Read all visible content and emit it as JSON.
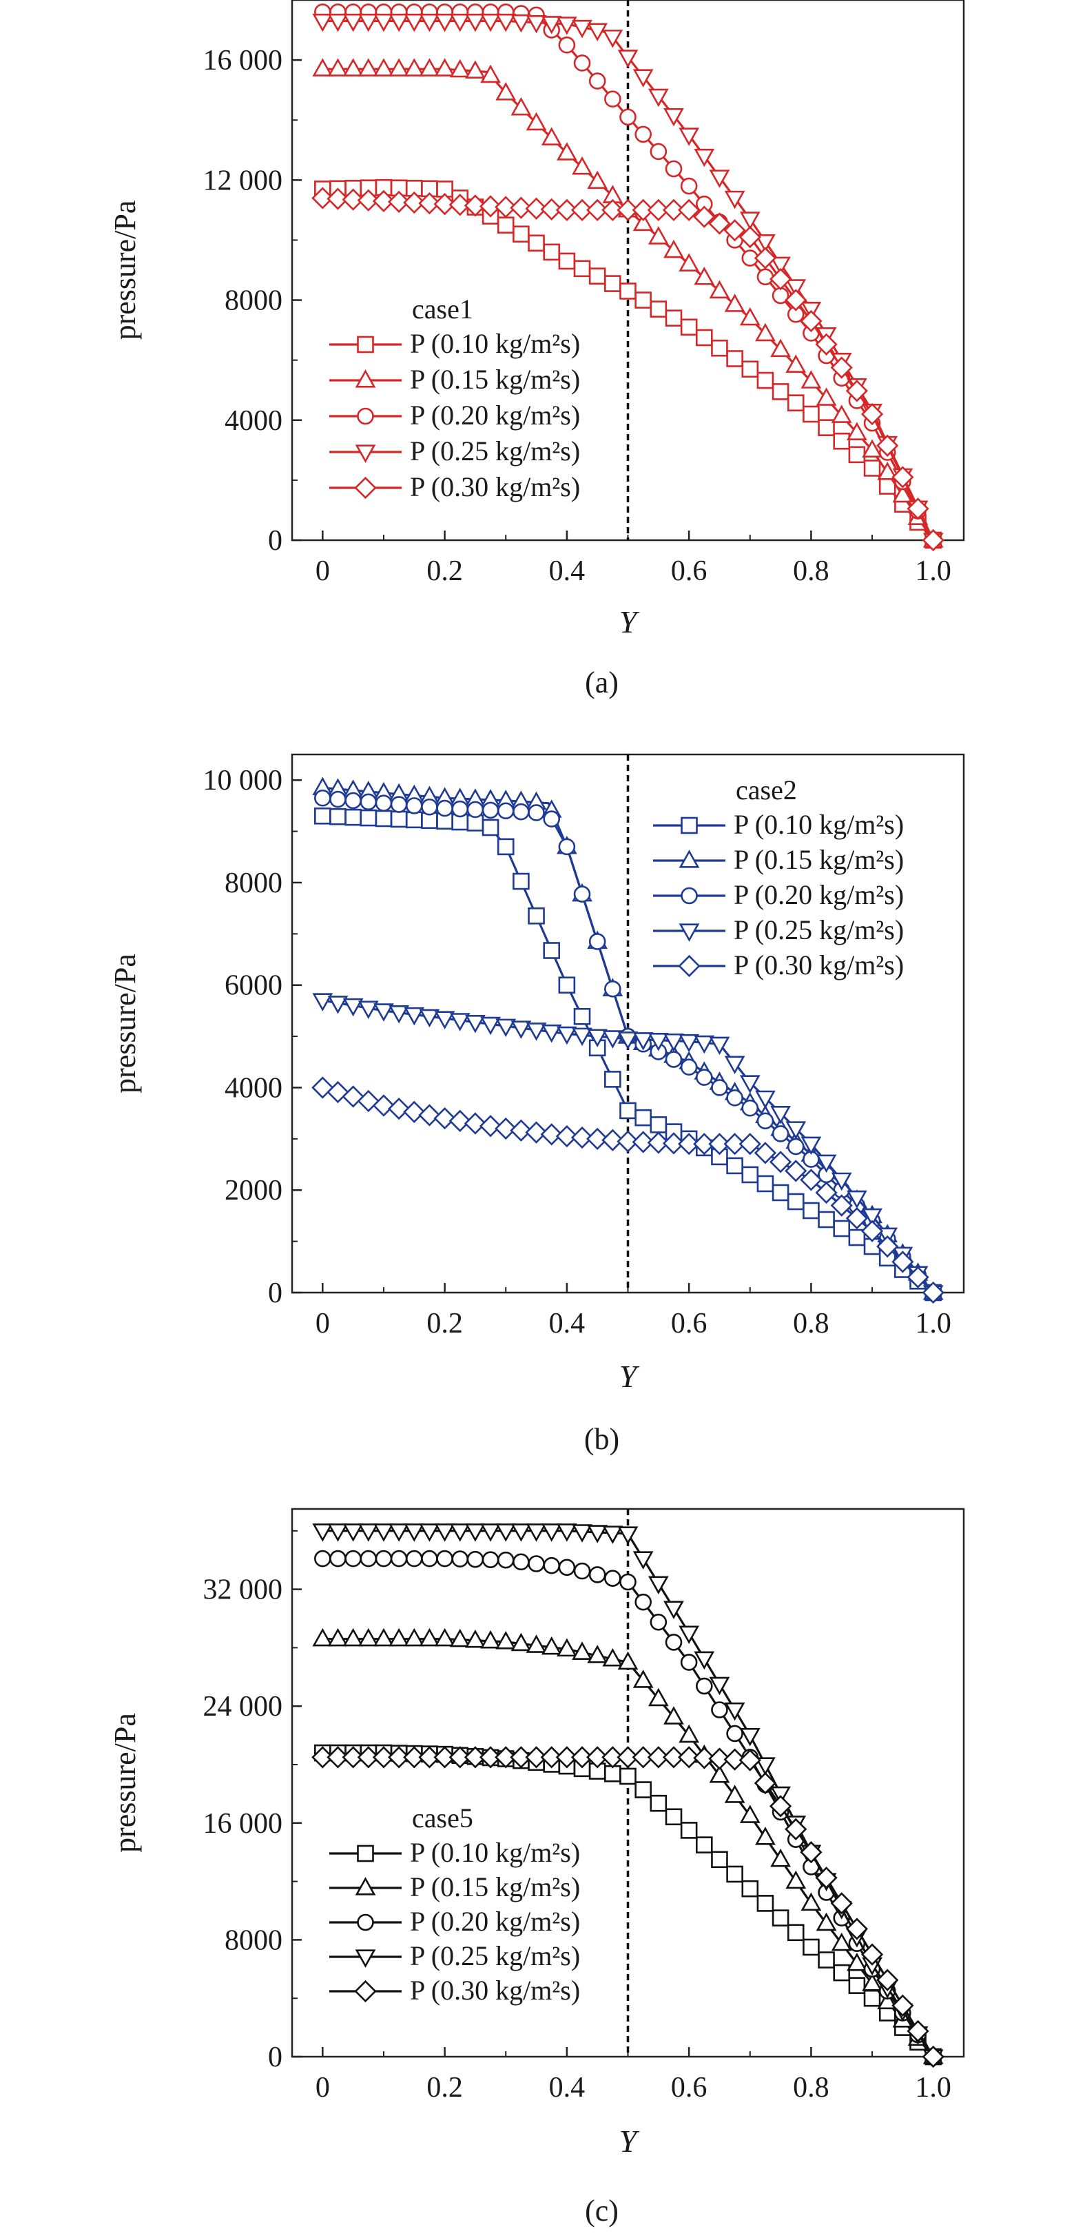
{
  "figure": {
    "panels": [
      {
        "caption": "(a)",
        "legend_title": "case1"
      },
      {
        "caption": "(b)",
        "legend_title": "case2"
      },
      {
        "caption": "(c)",
        "legend_title": "case5"
      }
    ]
  },
  "chart_data": [
    {
      "type": "line",
      "caption": "(a)",
      "legend_title": "case1",
      "xlabel": "Y",
      "ylabel": "pressure/Pa",
      "xlim": [
        -0.05,
        1.05
      ],
      "ylim": [
        0,
        18000
      ],
      "xticks": [
        0,
        0.2,
        0.4,
        0.6,
        0.8,
        1.0
      ],
      "xtick_labels": [
        "0",
        "0.2",
        "0.4",
        "0.6",
        "0.8",
        "1.0"
      ],
      "yticks": [
        0,
        4000,
        8000,
        12000,
        16000
      ],
      "ytick_labels": [
        "0",
        "4000",
        "8000",
        "12 000",
        "16 000"
      ],
      "reference_line_x": 0.5,
      "line_color": "#d62728",
      "legend_position": "center-left",
      "series": [
        {
          "name": "P (0.10 kg/m²s)",
          "marker": "square",
          "points": [
            [
              0,
              11700
            ],
            [
              0.1,
              11750
            ],
            [
              0.2,
              11700
            ],
            [
              0.3,
              10500
            ],
            [
              0.4,
              9300
            ],
            [
              0.5,
              8300
            ],
            [
              0.6,
              7100
            ],
            [
              0.7,
              5700
            ],
            [
              0.8,
              4200
            ],
            [
              0.9,
              2400
            ],
            [
              1.0,
              0
            ]
          ]
        },
        {
          "name": "P (0.15 kg/m²s)",
          "marker": "triangle-up",
          "points": [
            [
              0,
              15700
            ],
            [
              0.1,
              15700
            ],
            [
              0.2,
              15700
            ],
            [
              0.27,
              15600
            ],
            [
              0.3,
              14900
            ],
            [
              0.4,
              12900
            ],
            [
              0.5,
              11000
            ],
            [
              0.6,
              9200
            ],
            [
              0.7,
              7400
            ],
            [
              0.8,
              5300
            ],
            [
              0.9,
              3000
            ],
            [
              1.0,
              0
            ]
          ]
        },
        {
          "name": "P (0.20 kg/m²s)",
          "marker": "circle",
          "points": [
            [
              0,
              17600
            ],
            [
              0.1,
              17600
            ],
            [
              0.2,
              17600
            ],
            [
              0.3,
              17600
            ],
            [
              0.35,
              17500
            ],
            [
              0.4,
              16500
            ],
            [
              0.5,
              14100
            ],
            [
              0.6,
              11800
            ],
            [
              0.7,
              9400
            ],
            [
              0.8,
              6900
            ],
            [
              0.9,
              3900
            ],
            [
              1.0,
              0
            ]
          ]
        },
        {
          "name": "P (0.25 kg/m²s)",
          "marker": "triangle-down",
          "points": [
            [
              0,
              17300
            ],
            [
              0.1,
              17300
            ],
            [
              0.2,
              17300
            ],
            [
              0.3,
              17300
            ],
            [
              0.4,
              17200
            ],
            [
              0.47,
              16900
            ],
            [
              0.5,
              16100
            ],
            [
              0.6,
              13500
            ],
            [
              0.7,
              10700
            ],
            [
              0.8,
              7700
            ],
            [
              0.9,
              4300
            ],
            [
              1.0,
              0
            ]
          ]
        },
        {
          "name": "P (0.30 kg/m²s)",
          "marker": "diamond",
          "points": [
            [
              0,
              11400
            ],
            [
              0.1,
              11300
            ],
            [
              0.2,
              11200
            ],
            [
              0.3,
              11100
            ],
            [
              0.4,
              11000
            ],
            [
              0.5,
              11000
            ],
            [
              0.6,
              11000
            ],
            [
              0.7,
              10100
            ],
            [
              0.8,
              7300
            ],
            [
              0.9,
              4200
            ],
            [
              1.0,
              0
            ]
          ]
        }
      ]
    },
    {
      "type": "line",
      "caption": "(b)",
      "legend_title": "case2",
      "xlabel": "Y",
      "ylabel": "pressure/Pa",
      "xlim": [
        -0.05,
        1.05
      ],
      "ylim": [
        0,
        10500
      ],
      "xticks": [
        0,
        0.2,
        0.4,
        0.6,
        0.8,
        1.0
      ],
      "xtick_labels": [
        "0",
        "0.2",
        "0.4",
        "0.6",
        "0.8",
        "1.0"
      ],
      "yticks": [
        0,
        2000,
        4000,
        6000,
        8000,
        10000
      ],
      "ytick_labels": [
        "0",
        "2000",
        "4000",
        "6000",
        "8000",
        "10 000"
      ],
      "reference_line_x": 0.5,
      "line_color": "#1f3a93",
      "legend_position": "top-right",
      "series": [
        {
          "name": "P (0.10 kg/m²s)",
          "marker": "square",
          "points": [
            [
              0,
              9300
            ],
            [
              0.1,
              9250
            ],
            [
              0.2,
              9200
            ],
            [
              0.27,
              9150
            ],
            [
              0.3,
              8700
            ],
            [
              0.4,
              6000
            ],
            [
              0.5,
              3550
            ],
            [
              0.6,
              3000
            ],
            [
              0.7,
              2300
            ],
            [
              0.8,
              1600
            ],
            [
              0.9,
              900
            ],
            [
              1.0,
              0
            ]
          ]
        },
        {
          "name": "P (0.15 kg/m²s)",
          "marker": "triangle-up",
          "points": [
            [
              0,
              9850
            ],
            [
              0.1,
              9750
            ],
            [
              0.2,
              9650
            ],
            [
              0.3,
              9600
            ],
            [
              0.37,
              9550
            ],
            [
              0.4,
              8700
            ],
            [
              0.5,
              5000
            ],
            [
              0.6,
              4500
            ],
            [
              0.7,
              3700
            ],
            [
              0.8,
              2700
            ],
            [
              0.9,
              1500
            ],
            [
              1.0,
              0
            ]
          ]
        },
        {
          "name": "P (0.20 kg/m²s)",
          "marker": "circle",
          "points": [
            [
              0,
              9650
            ],
            [
              0.1,
              9550
            ],
            [
              0.2,
              9450
            ],
            [
              0.3,
              9400
            ],
            [
              0.37,
              9350
            ],
            [
              0.4,
              8700
            ],
            [
              0.5,
              5000
            ],
            [
              0.6,
              4400
            ],
            [
              0.7,
              3600
            ],
            [
              0.8,
              2600
            ],
            [
              0.9,
              1400
            ],
            [
              1.0,
              0
            ]
          ]
        },
        {
          "name": "P (0.25 kg/m²s)",
          "marker": "triangle-down",
          "points": [
            [
              0,
              5700
            ],
            [
              0.1,
              5500
            ],
            [
              0.2,
              5350
            ],
            [
              0.3,
              5200
            ],
            [
              0.4,
              5050
            ],
            [
              0.5,
              4950
            ],
            [
              0.6,
              4900
            ],
            [
              0.65,
              4850
            ],
            [
              0.7,
              4100
            ],
            [
              0.8,
              2900
            ],
            [
              0.9,
              1500
            ],
            [
              1.0,
              0
            ]
          ]
        },
        {
          "name": "P (0.30 kg/m²s)",
          "marker": "diamond",
          "points": [
            [
              0,
              4000
            ],
            [
              0.1,
              3650
            ],
            [
              0.2,
              3400
            ],
            [
              0.3,
              3200
            ],
            [
              0.4,
              3050
            ],
            [
              0.5,
              2950
            ],
            [
              0.6,
              2900
            ],
            [
              0.7,
              2900
            ],
            [
              0.8,
              2200
            ],
            [
              0.9,
              1200
            ],
            [
              1.0,
              0
            ]
          ]
        }
      ]
    },
    {
      "type": "line",
      "caption": "(c)",
      "legend_title": "case5",
      "xlabel": "Y",
      "ylabel": "pressure/Pa",
      "xlim": [
        -0.05,
        1.05
      ],
      "ylim": [
        0,
        37500
      ],
      "xticks": [
        0,
        0.2,
        0.4,
        0.6,
        0.8,
        1.0
      ],
      "xtick_labels": [
        "0",
        "0.2",
        "0.4",
        "0.6",
        "0.8",
        "1.0"
      ],
      "yticks": [
        0,
        8000,
        16000,
        24000,
        32000
      ],
      "ytick_labels": [
        "0",
        "8000",
        "16 000",
        "24 000",
        "32 000"
      ],
      "reference_line_x": 0.5,
      "line_color": "#111111",
      "legend_position": "center-left",
      "series": [
        {
          "name": "P (0.10 kg/m²s)",
          "marker": "square",
          "points": [
            [
              0,
              20800
            ],
            [
              0.1,
              20800
            ],
            [
              0.2,
              20700
            ],
            [
              0.3,
              20400
            ],
            [
              0.4,
              19900
            ],
            [
              0.5,
              19200
            ],
            [
              0.6,
              15500
            ],
            [
              0.7,
              11500
            ],
            [
              0.8,
              7500
            ],
            [
              0.9,
              4000
            ],
            [
              1.0,
              0
            ]
          ]
        },
        {
          "name": "P (0.15 kg/m²s)",
          "marker": "triangle-up",
          "points": [
            [
              0,
              28600
            ],
            [
              0.1,
              28600
            ],
            [
              0.2,
              28600
            ],
            [
              0.3,
              28400
            ],
            [
              0.4,
              27900
            ],
            [
              0.5,
              27000
            ],
            [
              0.6,
              22000
            ],
            [
              0.7,
              16500
            ],
            [
              0.8,
              10500
            ],
            [
              0.9,
              5000
            ],
            [
              1.0,
              0
            ]
          ]
        },
        {
          "name": "P (0.20 kg/m²s)",
          "marker": "circle",
          "points": [
            [
              0,
              34100
            ],
            [
              0.1,
              34100
            ],
            [
              0.2,
              34100
            ],
            [
              0.3,
              34000
            ],
            [
              0.4,
              33500
            ],
            [
              0.5,
              32500
            ],
            [
              0.6,
              27000
            ],
            [
              0.7,
              20500
            ],
            [
              0.8,
              13000
            ],
            [
              0.9,
              6000
            ],
            [
              1.0,
              0
            ]
          ]
        },
        {
          "name": "P (0.25 kg/m²s)",
          "marker": "triangle-down",
          "points": [
            [
              0,
              36000
            ],
            [
              0.1,
              36000
            ],
            [
              0.2,
              36000
            ],
            [
              0.3,
              36000
            ],
            [
              0.4,
              36000
            ],
            [
              0.5,
              35800
            ],
            [
              0.6,
              29000
            ],
            [
              0.7,
              22000
            ],
            [
              0.8,
              14000
            ],
            [
              0.9,
              6300
            ],
            [
              1.0,
              0
            ]
          ]
        },
        {
          "name": "P (0.30 kg/m²s)",
          "marker": "diamond",
          "points": [
            [
              0,
              20500
            ],
            [
              0.1,
              20500
            ],
            [
              0.2,
              20500
            ],
            [
              0.3,
              20500
            ],
            [
              0.4,
              20500
            ],
            [
              0.5,
              20500
            ],
            [
              0.6,
              20500
            ],
            [
              0.7,
              20300
            ],
            [
              0.8,
              14000
            ],
            [
              0.9,
              7000
            ],
            [
              1.0,
              0
            ]
          ]
        }
      ]
    }
  ]
}
